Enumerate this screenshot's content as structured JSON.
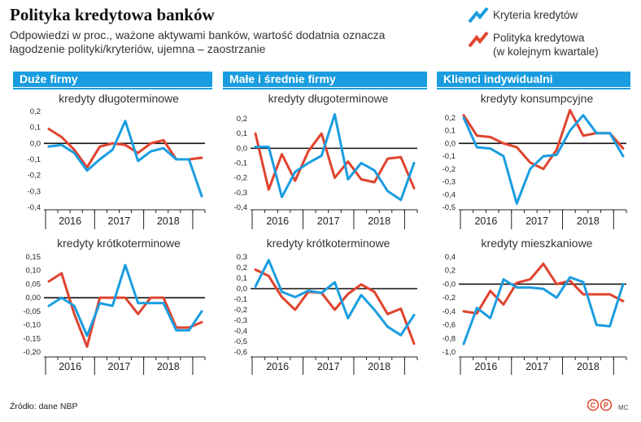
{
  "header": {
    "title": "Polityka kredytowa banków",
    "subtitle": "Odpowiedzi w proc., ważone aktywami banków, wartość dodatnia oznacza łagodzenie polityki/kryteriów, ujemna – zaostrzanie"
  },
  "legend": {
    "criteria_label": "Kryteria kredytów",
    "policy_label_line1": "Polityka kredytowa",
    "policy_label_line2": "(w kolejnym kwartale)",
    "criteria_color": "#1a9de0",
    "policy_color": "#e0432e"
  },
  "sections": [
    {
      "label": "Duże firmy"
    },
    {
      "label": "Małe i średnie firmy"
    },
    {
      "label": "Klienci indywidualni"
    }
  ],
  "footer": {
    "source": "Źródło: dane NBP",
    "logo_text": "CP",
    "author": "MC"
  },
  "chart_data": [
    {
      "type": "line",
      "panel": "Duże firmy",
      "subtitle": "kredyty długoterminowe",
      "years": [
        "2016",
        "2017",
        "2018"
      ],
      "yticks": [
        0.2,
        0.1,
        0.0,
        -0.1,
        -0.2,
        -0.3,
        -0.4
      ],
      "ytick_labels": [
        "0,2",
        "0,1",
        "0,0",
        "-0,1",
        "-0,2",
        "-0,3",
        "-0,4"
      ],
      "ylim": [
        -0.4,
        0.2
      ],
      "series": [
        {
          "name": "Kryteria kredytów",
          "values": [
            -0.02,
            -0.01,
            -0.06,
            -0.17,
            -0.1,
            -0.04,
            0.14,
            -0.11,
            -0.05,
            -0.03,
            -0.1,
            -0.1,
            -0.33
          ]
        },
        {
          "name": "Polityka kredytowa (w kolejnym kwartale)",
          "values": [
            0.09,
            0.04,
            -0.04,
            -0.15,
            -0.02,
            0.0,
            -0.01,
            -0.06,
            0.0,
            0.02,
            -0.1,
            -0.1,
            -0.09
          ]
        }
      ]
    },
    {
      "type": "line",
      "panel": "Małe i średnie firmy",
      "subtitle": "kredyty długoterminowe",
      "years": [
        "2016",
        "2017",
        "2018"
      ],
      "yticks": [
        0.2,
        0.1,
        0.0,
        -0.1,
        -0.2,
        -0.3,
        -0.4
      ],
      "ytick_labels": [
        "0,2",
        "0,1",
        "0,0",
        "-0,1",
        "-0,2",
        "-0,3",
        "-0,4"
      ],
      "ylim": [
        -0.4,
        0.25
      ],
      "series": [
        {
          "name": "Kryteria kredytów",
          "values": [
            0.01,
            0.01,
            -0.33,
            -0.16,
            -0.1,
            -0.05,
            0.23,
            -0.21,
            -0.1,
            -0.15,
            -0.29,
            -0.35,
            -0.1
          ]
        },
        {
          "name": "Polityka kredytowa (w kolejnym kwartale)",
          "values": [
            0.1,
            -0.28,
            -0.04,
            -0.22,
            -0.02,
            0.1,
            -0.2,
            -0.09,
            -0.21,
            -0.23,
            -0.07,
            -0.06,
            -0.27
          ]
        }
      ]
    },
    {
      "type": "line",
      "panel": "Klienci indywidualni",
      "subtitle": "kredyty konsumpcyjne",
      "years": [
        "2016",
        "2017",
        "2018"
      ],
      "yticks": [
        0.2,
        0.1,
        0.0,
        -0.1,
        -0.2,
        -0.3,
        -0.4,
        -0.5
      ],
      "ytick_labels": [
        "0,2",
        "0,1",
        "0,0",
        "-0,1",
        "-0,2",
        "-0,3",
        "-0,4",
        "-0,5"
      ],
      "ylim": [
        -0.5,
        0.25
      ],
      "series": [
        {
          "name": "Kryteria kredytów",
          "values": [
            0.2,
            -0.03,
            -0.04,
            -0.1,
            -0.47,
            -0.2,
            -0.1,
            -0.09,
            0.1,
            0.22,
            0.08,
            0.08,
            -0.1
          ]
        },
        {
          "name": "Polityka kredytowa (w kolejnym kwartale)",
          "values": [
            0.22,
            0.06,
            0.05,
            0.0,
            -0.03,
            -0.15,
            -0.2,
            -0.05,
            0.26,
            0.06,
            0.08,
            0.08,
            -0.04
          ]
        }
      ]
    },
    {
      "type": "line",
      "panel": "Duże firmy",
      "subtitle": "kredyty krótkoterminowe",
      "years": [
        "2016",
        "2017",
        "2018"
      ],
      "yticks": [
        0.15,
        0.1,
        0.05,
        0.0,
        -0.05,
        -0.1,
        -0.15,
        -0.2
      ],
      "ytick_labels": [
        "0,15",
        "0,10",
        "0,05",
        "0,00",
        "-0,05",
        "-0,10",
        "-0,15",
        "-0,20"
      ],
      "ylim": [
        -0.2,
        0.15
      ],
      "series": [
        {
          "name": "Kryteria kredytów",
          "values": [
            -0.03,
            0.0,
            -0.03,
            -0.14,
            -0.02,
            -0.03,
            0.12,
            -0.02,
            -0.02,
            -0.02,
            -0.12,
            -0.12,
            -0.05
          ]
        },
        {
          "name": "Polityka kredytowa (w kolejnym kwartale)",
          "values": [
            0.06,
            0.09,
            -0.06,
            -0.18,
            0.0,
            0.0,
            0.0,
            -0.06,
            0.0,
            0.0,
            -0.11,
            -0.11,
            -0.09
          ]
        }
      ]
    },
    {
      "type": "line",
      "panel": "Małe i średnie firmy",
      "subtitle": "kredyty krótkoterminowe",
      "years": [
        "2016",
        "2017",
        "2018"
      ],
      "yticks": [
        0.3,
        0.2,
        0.1,
        0.0,
        -0.1,
        -0.2,
        -0.3,
        -0.4,
        -0.5,
        -0.6
      ],
      "ytick_labels": [
        "0,3",
        "0,2",
        "0,1",
        "0,0",
        "-0,1",
        "-0,2",
        "-0,3",
        "-0,4",
        "-0,5",
        "-0,6"
      ],
      "ylim": [
        -0.6,
        0.3
      ],
      "series": [
        {
          "name": "Kryteria kredytów",
          "values": [
            0.02,
            0.27,
            -0.03,
            -0.08,
            -0.02,
            -0.04,
            0.06,
            -0.28,
            -0.06,
            -0.2,
            -0.36,
            -0.44,
            -0.25
          ]
        },
        {
          "name": "Polityka kredytowa (w kolejnym kwartale)",
          "values": [
            0.18,
            0.12,
            -0.08,
            -0.2,
            -0.03,
            -0.04,
            -0.2,
            -0.05,
            0.04,
            -0.03,
            -0.24,
            -0.19,
            -0.52
          ]
        }
      ]
    },
    {
      "type": "line",
      "panel": "Klienci indywidualni",
      "subtitle": "kredyty mieszkaniowe",
      "years": [
        "2016",
        "2017",
        "2018"
      ],
      "yticks": [
        0.4,
        0.2,
        0.0,
        -0.2,
        -0.4,
        -0.6,
        -0.8,
        -1.0
      ],
      "ytick_labels": [
        "0,4",
        "0,2",
        "-0,0",
        "-0,2",
        "-0,4",
        "-0,6",
        "-0,8",
        "-1,0"
      ],
      "ylim": [
        -1.0,
        0.4
      ],
      "series": [
        {
          "name": "Kryteria kredytów",
          "values": [
            -0.88,
            -0.35,
            -0.5,
            0.07,
            -0.05,
            -0.05,
            -0.07,
            -0.2,
            0.1,
            0.03,
            -0.6,
            -0.62,
            0.0
          ]
        },
        {
          "name": "Polityka kredytowa (w kolejnym kwartale)",
          "values": [
            -0.4,
            -0.43,
            -0.1,
            -0.3,
            0.02,
            0.07,
            0.3,
            0.0,
            0.05,
            -0.15,
            -0.15,
            -0.15,
            -0.25
          ]
        }
      ]
    }
  ]
}
